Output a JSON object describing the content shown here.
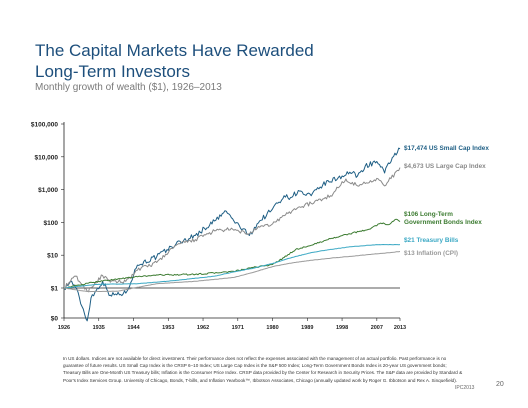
{
  "header": {
    "title_line1": "The Capital Markets Have Rewarded",
    "title_line2": "Long-Term Investors",
    "subtitle": "Monthly growth of wealth ($1), 1926–2013"
  },
  "chart_data": {
    "type": "line",
    "title": "The Capital Markets Have Rewarded Long-Term Investors",
    "subtitle": "Monthly growth of wealth ($1), 1926–2013",
    "y_scale": "log",
    "ylim": [
      0,
      100000
    ],
    "y_ticks": [
      "$0",
      "$1",
      "$10",
      "$100",
      "$1,000",
      "$10,000",
      "$100,000"
    ],
    "x_ticks": [
      "1926",
      "1935",
      "1944",
      "1953",
      "1962",
      "1971",
      "1980",
      "1989",
      "1998",
      "2007",
      "2013"
    ],
    "series": [
      {
        "name": "US Small Cap Index",
        "label": "$17,474  US Small Cap Index",
        "color": "#1f5f85",
        "points": [
          [
            1926,
            1
          ],
          [
            1928,
            1.6
          ],
          [
            1929,
            1.05
          ],
          [
            1932,
            0.1
          ],
          [
            1933,
            0.5
          ],
          [
            1936,
            1.6
          ],
          [
            1938,
            0.6
          ],
          [
            1942,
            0.7
          ],
          [
            1945,
            5
          ],
          [
            1950,
            9
          ],
          [
            1955,
            22
          ],
          [
            1960,
            40
          ],
          [
            1965,
            110
          ],
          [
            1968,
            220
          ],
          [
            1970,
            110
          ],
          [
            1974,
            40
          ],
          [
            1976,
            90
          ],
          [
            1980,
            260
          ],
          [
            1983,
            650
          ],
          [
            1984,
            560
          ],
          [
            1987,
            900
          ],
          [
            1988,
            720
          ],
          [
            1990,
            650
          ],
          [
            1993,
            1400
          ],
          [
            1998,
            2600
          ],
          [
            2000,
            3400
          ],
          [
            2002,
            2600
          ],
          [
            2004,
            5200
          ],
          [
            2007,
            7200
          ],
          [
            2009,
            3200
          ],
          [
            2011,
            9500
          ],
          [
            2013,
            17474
          ]
        ]
      },
      {
        "name": "US Large Cap Index",
        "label": "$4,673  US Large Cap Index",
        "color": "#8a8a8a",
        "points": [
          [
            1926,
            1
          ],
          [
            1929,
            2.3
          ],
          [
            1932,
            0.8
          ],
          [
            1936,
            2.4
          ],
          [
            1938,
            1.5
          ],
          [
            1942,
            1.6
          ],
          [
            1945,
            3.5
          ],
          [
            1950,
            6
          ],
          [
            1955,
            20
          ],
          [
            1960,
            30
          ],
          [
            1965,
            55
          ],
          [
            1968,
            60
          ],
          [
            1970,
            58
          ],
          [
            1974,
            45
          ],
          [
            1976,
            65
          ],
          [
            1980,
            90
          ],
          [
            1983,
            160
          ],
          [
            1987,
            300
          ],
          [
            1990,
            380
          ],
          [
            1995,
            650
          ],
          [
            1999,
            2100
          ],
          [
            2002,
            1300
          ],
          [
            2007,
            2200
          ],
          [
            2009,
            1300
          ],
          [
            2013,
            4673
          ]
        ]
      },
      {
        "name": "Long-Term Government Bonds Index",
        "label": "$106  Long-Term Government Bonds Index",
        "color": "#3d7c32",
        "points": [
          [
            1926,
            1
          ],
          [
            1935,
            1.6
          ],
          [
            1945,
            2.2
          ],
          [
            1950,
            2.5
          ],
          [
            1960,
            2.6
          ],
          [
            1970,
            3.2
          ],
          [
            1975,
            4.2
          ],
          [
            1980,
            5.2
          ],
          [
            1983,
            8.5
          ],
          [
            1986,
            15
          ],
          [
            1990,
            20
          ],
          [
            1995,
            32
          ],
          [
            2000,
            45
          ],
          [
            2005,
            62
          ],
          [
            2008,
            95
          ],
          [
            2010,
            85
          ],
          [
            2012,
            125
          ],
          [
            2013,
            106
          ]
        ]
      },
      {
        "name": "Treasury Bills",
        "label": "$21  Treasury Bills",
        "color": "#3aa8c4",
        "points": [
          [
            1926,
            1
          ],
          [
            1935,
            1.3
          ],
          [
            1945,
            1.35
          ],
          [
            1955,
            1.7
          ],
          [
            1965,
            2.3
          ],
          [
            1970,
            3.1
          ],
          [
            1975,
            4
          ],
          [
            1980,
            5.6
          ],
          [
            1985,
            8.5
          ],
          [
            1990,
            12
          ],
          [
            1995,
            15
          ],
          [
            2000,
            18
          ],
          [
            2007,
            21
          ],
          [
            2013,
            21
          ]
        ]
      },
      {
        "name": "Inflation (CPI)",
        "label": "$13  Inflation (CPI)",
        "color": "#9a9a9a",
        "points": [
          [
            1926,
            1
          ],
          [
            1932,
            0.78
          ],
          [
            1940,
            0.8
          ],
          [
            1945,
            1.05
          ],
          [
            1950,
            1.35
          ],
          [
            1960,
            1.6
          ],
          [
            1970,
            2.1
          ],
          [
            1975,
            3.0
          ],
          [
            1980,
            4.5
          ],
          [
            1985,
            5.8
          ],
          [
            1990,
            7
          ],
          [
            1995,
            8.1
          ],
          [
            2000,
            9.2
          ],
          [
            2005,
            10.5
          ],
          [
            2010,
            11.8
          ],
          [
            2013,
            13
          ]
        ]
      }
    ]
  },
  "footnote": "In US dollars. Indices are not available for direct investment. Their performance does not reflect the expenses associated with the management of an actual portfolio. Past performance is no guarantee of future results. US Small Cap Index is the CRSP 6–10 Index; US Large Cap Index is the S&P 500 Index; Long-Term Government Bonds Index is 20-year US government bonds; Treasury Bills are One-Month US Treasury bills; Inflation is the Consumer Price Index. CRSP data provided by the Center for Research in Security Prices. The S&P data are provided by Standard & Poor's Index Services Group. University of Chicago, Bonds, T-bills, and Inflation Yearbook™, Ibbotson Associates, Chicago (annually updated work by Roger G. Ibbotson and Rex A. Sinquefield).",
  "page_code": "IPC2013",
  "page_number": "20"
}
